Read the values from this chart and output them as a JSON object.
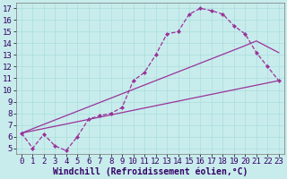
{
  "xlabel": "Windchill (Refroidissement éolien,°C)",
  "bg_color": "#c8ecec",
  "line_color": "#993399",
  "xlim": [
    -0.5,
    23.5
  ],
  "ylim": [
    4.5,
    17.5
  ],
  "xticks": [
    0,
    1,
    2,
    3,
    4,
    5,
    6,
    7,
    8,
    9,
    10,
    11,
    12,
    13,
    14,
    15,
    16,
    17,
    18,
    19,
    20,
    21,
    22,
    23
  ],
  "yticks": [
    5,
    6,
    7,
    8,
    9,
    10,
    11,
    12,
    13,
    14,
    15,
    16,
    17
  ],
  "curve1_x": [
    0,
    1,
    2,
    3,
    4,
    5,
    6,
    7,
    8,
    9,
    10,
    11,
    12,
    13,
    14,
    15,
    16,
    17,
    18,
    19,
    20,
    21,
    22,
    23
  ],
  "curve1_y": [
    6.3,
    5.0,
    6.2,
    5.2,
    4.8,
    6.0,
    7.5,
    7.8,
    8.0,
    8.5,
    10.8,
    11.5,
    13.0,
    14.8,
    15.0,
    16.5,
    17.0,
    16.8,
    16.5,
    15.5,
    14.8,
    13.2,
    12.0,
    10.8
  ],
  "curve2_x": [
    0,
    23
  ],
  "curve2_y": [
    6.3,
    10.8
  ],
  "curve3_x": [
    0,
    20,
    21,
    23
  ],
  "curve3_y": [
    6.3,
    13.8,
    14.2,
    13.2
  ],
  "grid_color": "#aadddd",
  "tick_label_fontsize": 6.5,
  "axis_label_fontsize": 7.0
}
